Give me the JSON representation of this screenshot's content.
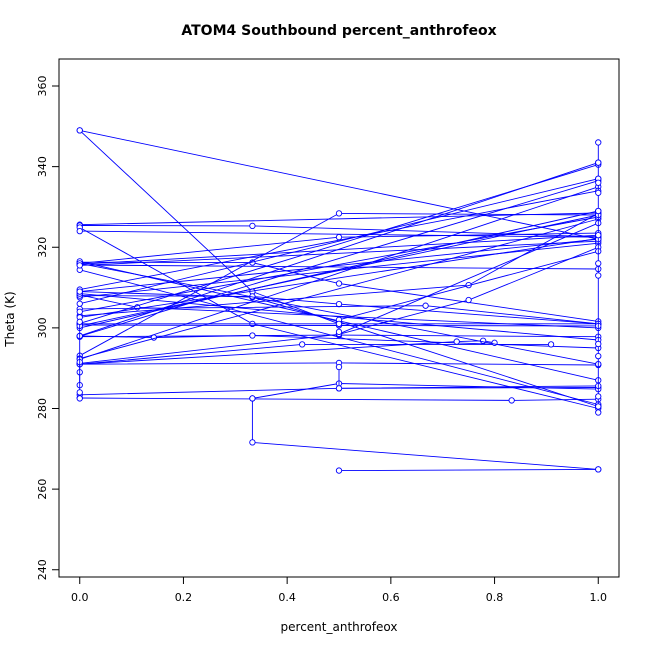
{
  "chart_data": {
    "type": "line",
    "title": "ATOM4 Southbound percent_anthrofeox",
    "xlabel": "percent_anthrofeox",
    "ylabel": "Theta (K)",
    "xlim": [
      -0.04,
      1.04
    ],
    "ylim": [
      238.2,
      366.7
    ],
    "x_ticks": [
      0.0,
      0.2,
      0.4,
      0.6,
      0.8,
      1.0
    ],
    "x_tick_labels": [
      "0.0",
      "0.2",
      "0.4",
      "0.6",
      "0.8",
      "1.0"
    ],
    "y_ticks": [
      240,
      260,
      280,
      300,
      320,
      340,
      360
    ],
    "y_tick_labels": [
      "240",
      "260",
      "280",
      "300",
      "320",
      "340",
      "360"
    ],
    "grid": false,
    "legend": "none",
    "color": "#0000ff",
    "series": [
      {
        "x": [
          0,
          1
        ],
        "y": [
          349.0,
          322.0
        ]
      },
      {
        "x": [
          0,
          0.333,
          0.5
        ],
        "y": [
          349.0,
          309.0,
          301.0
        ]
      },
      {
        "x": [
          0,
          1
        ],
        "y": [
          325.6,
          328.5
        ]
      },
      {
        "x": [
          0,
          0.333,
          1
        ],
        "y": [
          325.4,
          325.3,
          322.6
        ]
      },
      {
        "x": [
          0,
          0.333,
          1
        ],
        "y": [
          324.9,
          301.0,
          280.0
        ]
      },
      {
        "x": [
          0,
          1
        ],
        "y": [
          324.0,
          322.5
        ]
      },
      {
        "x": [
          0,
          0.333,
          0.5,
          1
        ],
        "y": [
          316.3,
          316.2,
          311.0,
          301.6
        ]
      },
      {
        "x": [
          0,
          1
        ],
        "y": [
          315.8,
          323.0
        ]
      },
      {
        "x": [
          0,
          1
        ],
        "y": [
          315.6,
          314.6
        ]
      },
      {
        "x": [
          0,
          1
        ],
        "y": [
          314.4,
          281.0
        ]
      },
      {
        "x": [
          0,
          0.333,
          0.5,
          1
        ],
        "y": [
          309.0,
          307.6,
          301.5,
          280.5
        ]
      },
      {
        "x": [
          0,
          1
        ],
        "y": [
          307.6,
          321.0
        ]
      },
      {
        "x": [
          0,
          0.111,
          1
        ],
        "y": [
          308.2,
          305.1,
          300.0
        ]
      },
      {
        "x": [
          0,
          0.333,
          0.5,
          1
        ],
        "y": [
          308.0,
          307.8,
          305.9,
          301.0
        ]
      },
      {
        "x": [
          0,
          0.667,
          1
        ],
        "y": [
          304.7,
          305.5,
          301.0
        ]
      },
      {
        "x": [
          0,
          0.75,
          1
        ],
        "y": [
          303.0,
          310.6,
          328.4
        ]
      },
      {
        "x": [
          0,
          1
        ],
        "y": [
          301.1,
          340.5
        ]
      },
      {
        "x": [
          0,
          1
        ],
        "y": [
          301.0,
          301.0
        ]
      },
      {
        "x": [
          0,
          0.5,
          1
        ],
        "y": [
          300.7,
          300.6,
          300.5
        ]
      },
      {
        "x": [
          0,
          1
        ],
        "y": [
          298.0,
          341.0
        ]
      },
      {
        "x": [
          0,
          1
        ],
        "y": [
          297.9,
          336.5
        ]
      },
      {
        "x": [
          0,
          0.5,
          1
        ],
        "y": [
          297.8,
          298.2,
          297.8
        ]
      },
      {
        "x": [
          0,
          0.143,
          0.333,
          1
        ],
        "y": [
          298.0,
          297.6,
          298.1,
          295.0
        ]
      },
      {
        "x": [
          0,
          0.5,
          1
        ],
        "y": [
          293.1,
          328.4,
          328.0
        ]
      },
      {
        "x": [
          0,
          1
        ],
        "y": [
          292.4,
          327.0
        ]
      },
      {
        "x": [
          0,
          1
        ],
        "y": [
          292.2,
          335.0
        ]
      },
      {
        "x": [
          0,
          0.5,
          1
        ],
        "y": [
          291.0,
          291.3,
          290.8
        ]
      },
      {
        "x": [
          0,
          0.429,
          0.909
        ],
        "y": [
          291.0,
          295.9,
          295.9
        ]
      },
      {
        "x": [
          0,
          0.5,
          0.75,
          1
        ],
        "y": [
          291.2,
          298.4,
          306.9,
          320.0
        ]
      },
      {
        "x": [
          0,
          0.727,
          0.778,
          0.8
        ],
        "y": [
          291.0,
          296.6,
          296.8,
          296.3
        ]
      },
      {
        "x": [
          0,
          0.5,
          1
        ],
        "y": [
          283.4,
          285.0,
          285.2
        ]
      },
      {
        "x": [
          0,
          0.833,
          1
        ],
        "y": [
          282.6,
          282.0,
          282.3
        ]
      },
      {
        "x": [
          0.333,
          0.5,
          1
        ],
        "y": [
          282.5,
          286.2,
          284.8
        ]
      },
      {
        "x": [
          0.333,
          0.333,
          1
        ],
        "y": [
          282.5,
          271.6,
          264.9
        ]
      },
      {
        "x": [
          0.5,
          1
        ],
        "y": [
          264.6,
          264.9
        ]
      },
      {
        "x": [
          0.5,
          0.5,
          1
        ],
        "y": [
          290.3,
          285.0,
          285.6
        ]
      },
      {
        "x": [
          0,
          0,
          0
        ],
        "y": [
          289.0,
          285.8,
          291.5
        ]
      },
      {
        "x": [
          0,
          1
        ],
        "y": [
          309.5,
          334.0
        ]
      },
      {
        "x": [
          0,
          1
        ],
        "y": [
          306.0,
          337.0
        ]
      },
      {
        "x": [
          0,
          1
        ],
        "y": [
          304.0,
          327.5
        ]
      },
      {
        "x": [
          0,
          1
        ],
        "y": [
          302.6,
          322.2
        ]
      },
      {
        "x": [
          0,
          1
        ],
        "y": [
          300.0,
          329.0
        ]
      },
      {
        "x": [
          0,
          0.5,
          1
        ],
        "y": [
          316.0,
          322.5,
          323.5
        ]
      },
      {
        "x": [
          0,
          1
        ],
        "y": [
          308.5,
          297.0
        ]
      },
      {
        "x": [
          0,
          1
        ],
        "y": [
          316.5,
          287.0
        ]
      },
      {
        "x": [
          0,
          1
        ],
        "y": [
          316.0,
          291.0
        ]
      },
      {
        "x": [
          0.5,
          1
        ],
        "y": [
          298.5,
          326.0
        ]
      },
      {
        "x": [
          0.5,
          1
        ],
        "y": [
          302.0,
          319.0
        ]
      },
      {
        "x": [
          0,
          1
        ],
        "y": [
          315.5,
          321.5
        ]
      },
      {
        "x": [
          0,
          1
        ],
        "y": [
          309.0,
          322.0
        ]
      },
      {
        "x": [
          0,
          1
        ],
        "y": [
          300.5,
          328.0
        ]
      },
      {
        "x": [
          1,
          1,
          1,
          1,
          1,
          1,
          1,
          1,
          1,
          1,
          1,
          1,
          1,
          1
        ],
        "y": [
          346.0,
          341.0,
          337.0,
          336.0,
          333.5,
          329.0,
          323.0,
          316.0,
          313.0,
          296.0,
          293.0,
          283.0,
          280.5,
          279.0
        ]
      },
      {
        "x": [
          0,
          0,
          0
        ],
        "y": [
          284.0,
          282.5,
          301.5
        ]
      },
      {
        "x": [
          0.5,
          0.5
        ],
        "y": [
          301.0,
          299.0
        ]
      }
    ]
  }
}
